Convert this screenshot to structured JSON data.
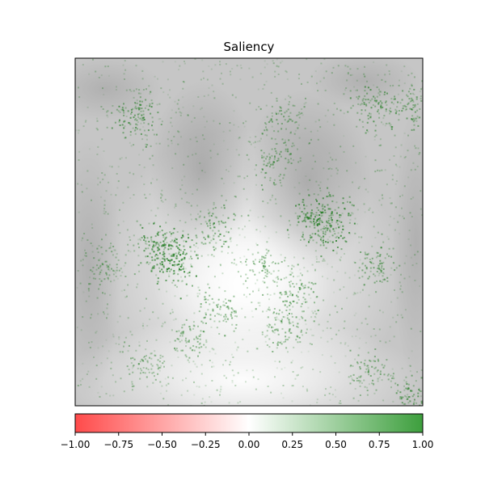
{
  "chart_data": {
    "type": "heatmap",
    "title": "Saliency",
    "image_axes": {
      "xticks": [],
      "yticks": []
    },
    "colorbar": {
      "orientation": "horizontal",
      "placement": "bottom",
      "range": [
        -1.0,
        1.0
      ],
      "ticks": [
        -1.0,
        -0.75,
        -0.5,
        -0.25,
        0.0,
        0.25,
        0.5,
        0.75,
        1.0
      ],
      "tick_labels": [
        "−1.00",
        "−0.75",
        "−0.50",
        "−0.25",
        "0.00",
        "0.25",
        "0.50",
        "0.75",
        "1.00"
      ],
      "colors": {
        "negative": "#ff4a4a",
        "zero": "#ffffff",
        "positive": "#3d9f3d"
      }
    },
    "background": "grayscale chest X-ray",
    "overlay_color": "#1e7a1e",
    "saliency_hotspots": [
      {
        "x": 0.28,
        "y": 0.58,
        "weight": 1.0
      },
      {
        "x": 0.24,
        "y": 0.55,
        "weight": 0.9
      },
      {
        "x": 0.73,
        "y": 0.48,
        "weight": 0.95
      },
      {
        "x": 0.69,
        "y": 0.45,
        "weight": 0.8
      },
      {
        "x": 0.17,
        "y": 0.16,
        "weight": 0.7
      },
      {
        "x": 0.86,
        "y": 0.13,
        "weight": 0.7
      },
      {
        "x": 0.96,
        "y": 0.13,
        "weight": 0.55
      },
      {
        "x": 0.4,
        "y": 0.49,
        "weight": 0.55
      },
      {
        "x": 0.64,
        "y": 0.68,
        "weight": 0.6
      },
      {
        "x": 0.6,
        "y": 0.78,
        "weight": 0.5
      },
      {
        "x": 0.42,
        "y": 0.72,
        "weight": 0.55
      },
      {
        "x": 0.86,
        "y": 0.59,
        "weight": 0.5
      },
      {
        "x": 0.97,
        "y": 0.98,
        "weight": 0.6
      },
      {
        "x": 0.85,
        "y": 0.9,
        "weight": 0.45
      },
      {
        "x": 0.33,
        "y": 0.82,
        "weight": 0.4
      },
      {
        "x": 0.53,
        "y": 0.6,
        "weight": 0.4
      },
      {
        "x": 0.57,
        "y": 0.3,
        "weight": 0.45
      },
      {
        "x": 0.6,
        "y": 0.18,
        "weight": 0.4
      },
      {
        "x": 0.08,
        "y": 0.6,
        "weight": 0.35
      },
      {
        "x": 0.2,
        "y": 0.88,
        "weight": 0.35
      }
    ]
  }
}
